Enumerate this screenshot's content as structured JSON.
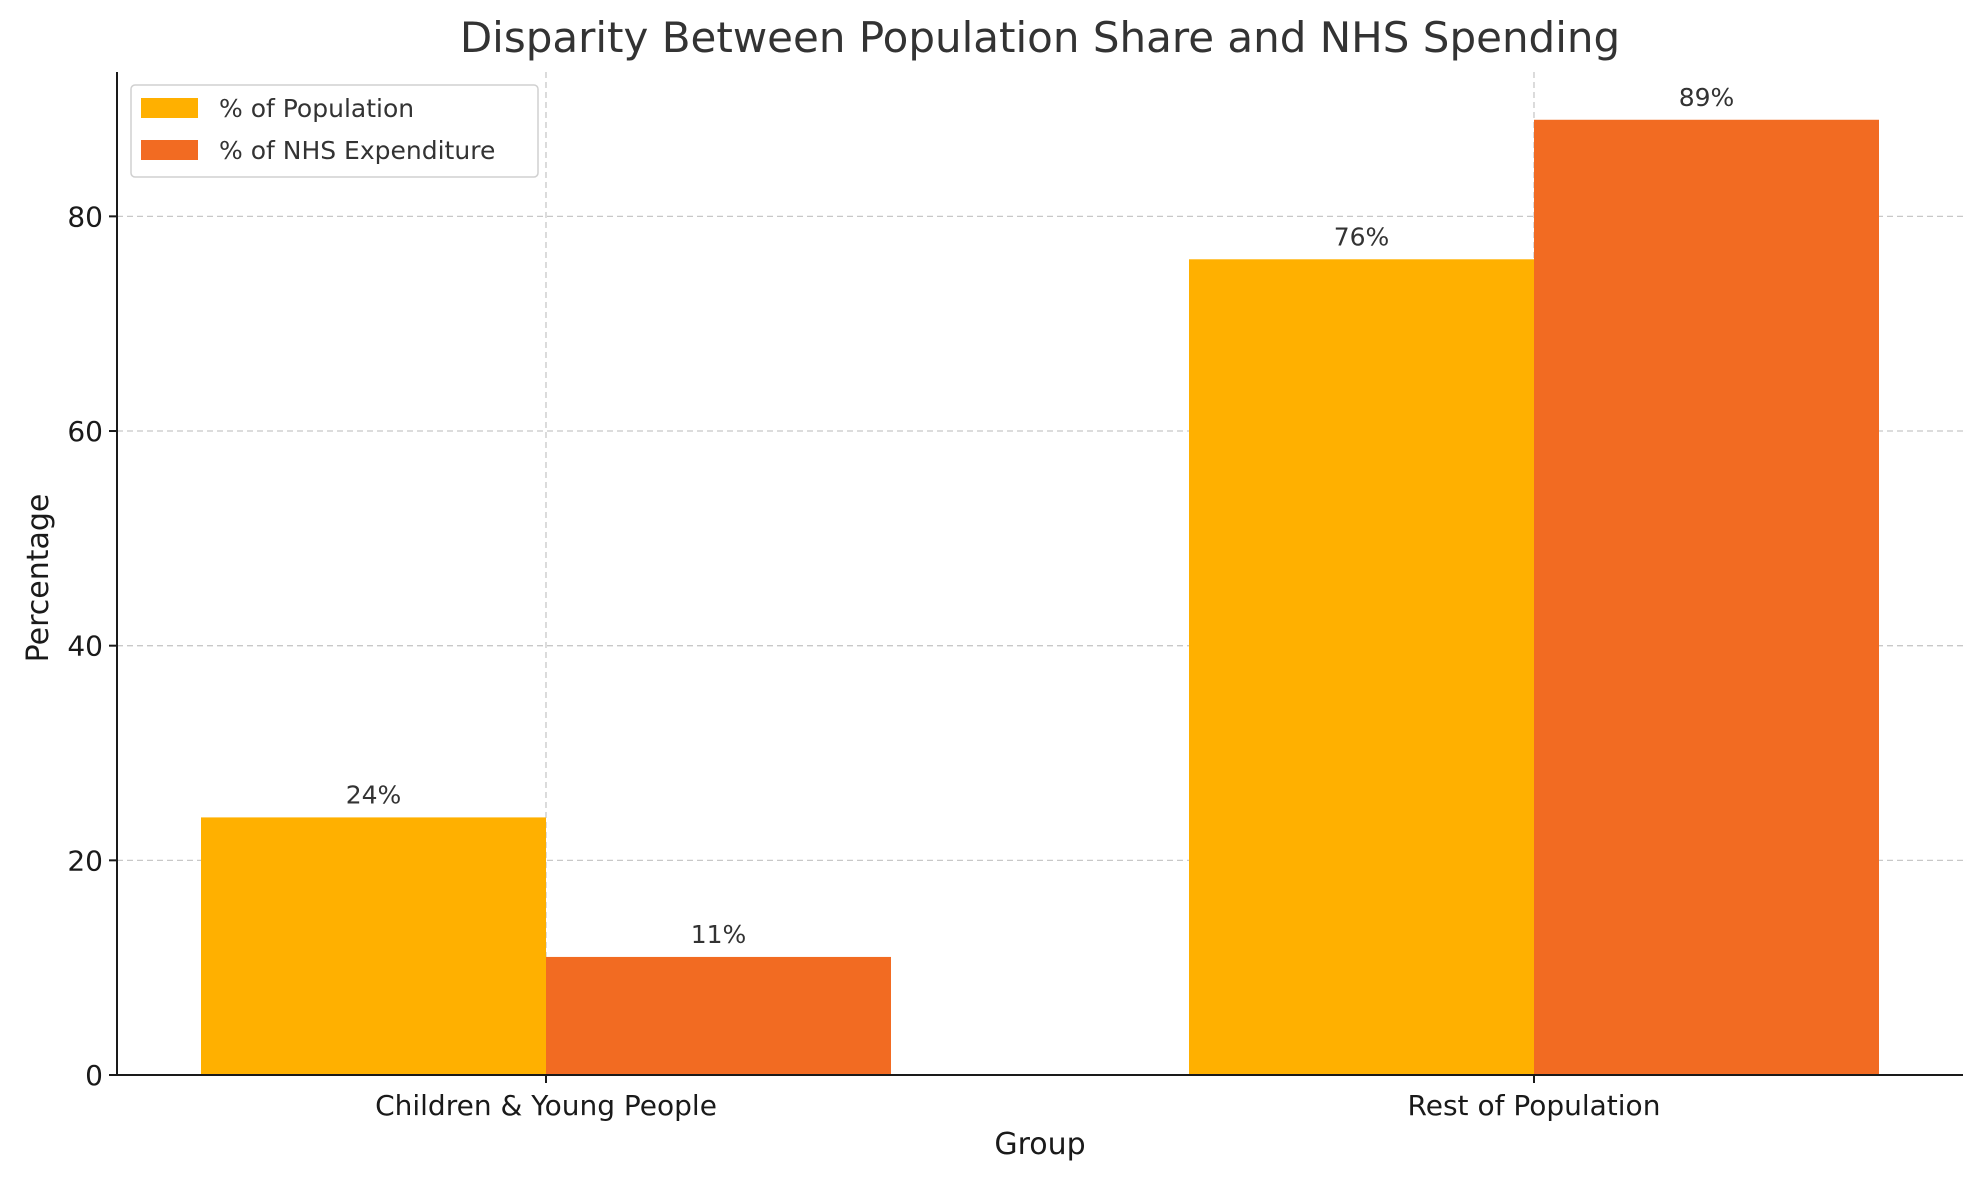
{
  "chart_data": {
    "type": "bar",
    "title": "Disparity Between Population Share and NHS Spending",
    "xlabel": "Group",
    "ylabel": "Percentage",
    "categories": [
      "Children & Young People",
      "Rest of Population"
    ],
    "series": [
      {
        "name": "% of Population",
        "values": [
          24,
          76
        ],
        "labels": [
          "24%",
          "76%"
        ],
        "color": "#FFB000"
      },
      {
        "name": "% of NHS Expenditure",
        "values": [
          11,
          89
        ],
        "labels": [
          "11%",
          "89%"
        ],
        "color": "#F26B22"
      }
    ],
    "ylim": [
      0,
      93.45
    ],
    "yticks": [
      0,
      20,
      40,
      60,
      80
    ],
    "grid": true,
    "legend": "top-left"
  }
}
